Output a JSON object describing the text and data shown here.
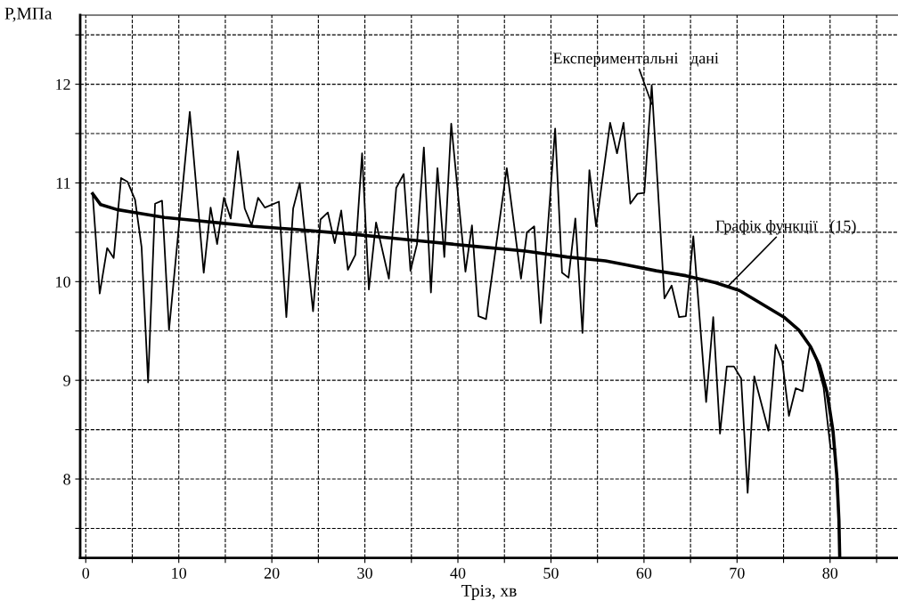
{
  "chart_data": {
    "type": "line",
    "xlabel": "Тріз, хв",
    "ylabel": "P,МПа",
    "xlim": [
      -0.6,
      87.3
    ],
    "ylim": [
      7.2,
      12.7
    ],
    "xticks": [
      0,
      {
        "value": 5,
        "label": null
      },
      10,
      {
        "value": 15,
        "label": null
      },
      20,
      {
        "value": 25,
        "label": null
      },
      30,
      {
        "value": 35,
        "label": null
      },
      40,
      {
        "value": 45,
        "label": null
      },
      50,
      {
        "value": 55,
        "label": null
      },
      60,
      {
        "value": 65,
        "label": null
      },
      70,
      {
        "value": 75,
        "label": null
      },
      80,
      {
        "value": 85,
        "label": null
      }
    ],
    "yticks": [
      {
        "value": 7.5,
        "label": null
      },
      8,
      {
        "value": 8.5,
        "label": null
      },
      9,
      {
        "value": 9.5,
        "label": null
      },
      10,
      {
        "value": 10.5,
        "label": null
      },
      11,
      {
        "value": 11.5,
        "label": null
      },
      12,
      {
        "value": 12.5,
        "label": null
      }
    ],
    "grid": true,
    "line_style": "solid",
    "marker": "none",
    "series": [
      {
        "color": "#000000",
        "x": [
          0.74,
          1.5,
          2.3,
          3.0,
          3.8,
          4.5,
          5.3,
          6.0,
          6.7,
          7.45,
          8.2,
          8.95,
          11.18,
          12.68,
          13.42,
          14.12,
          14.85,
          15.58,
          16.35,
          17.09,
          17.83,
          18.52,
          19.26,
          20.76,
          21.56,
          22.29,
          23.0,
          24.43,
          25.23,
          26.02,
          26.76,
          27.46,
          28.17,
          28.97,
          29.7,
          30.43,
          31.2,
          32.58,
          33.37,
          34.17,
          34.9,
          35.6,
          36.34,
          37.1,
          37.8,
          38.54,
          39.28,
          40.81,
          41.51,
          42.21,
          43.02,
          45.25,
          46.78,
          47.42,
          48.2,
          48.9,
          50.45,
          51.19,
          51.89,
          52.62,
          53.39,
          54.13,
          54.85,
          56.36,
          57.1,
          57.8,
          58.53,
          59.3,
          60.03,
          60.83,
          62.2,
          62.97,
          63.77,
          64.5,
          65.3,
          66.68,
          67.44,
          68.17,
          68.9,
          69.67,
          70.44,
          71.14,
          71.85,
          73.38,
          74.15,
          74.87,
          75.58,
          76.31,
          77.05,
          77.82,
          78.5,
          79.3,
          80.05,
          80.56
        ],
        "values": [
          10.89,
          9.88,
          10.34,
          10.24,
          11.05,
          11.01,
          10.83,
          10.35,
          8.98,
          10.79,
          10.82,
          9.51,
          11.72,
          10.09,
          10.75,
          10.38,
          10.85,
          10.64,
          11.32,
          10.74,
          10.57,
          10.85,
          10.75,
          10.81,
          9.64,
          10.74,
          11.0,
          9.7,
          10.63,
          10.7,
          10.39,
          10.72,
          10.12,
          10.27,
          11.3,
          9.92,
          10.6,
          10.03,
          10.95,
          11.09,
          10.11,
          10.38,
          11.36,
          9.89,
          11.15,
          10.25,
          11.6,
          10.1,
          10.57,
          9.65,
          9.62,
          11.15,
          10.03,
          10.5,
          10.56,
          9.58,
          11.55,
          10.09,
          10.04,
          10.64,
          9.48,
          11.13,
          10.56,
          11.61,
          11.3,
          11.61,
          10.79,
          10.89,
          10.9,
          11.99,
          9.83,
          9.96,
          9.64,
          9.65,
          10.46,
          8.78,
          9.64,
          8.46,
          9.14,
          9.14,
          9.02,
          7.86,
          9.04,
          8.49,
          9.36,
          9.19,
          8.64,
          8.92,
          8.89,
          9.35,
          9.21,
          8.93,
          8.31,
          8.3
        ]
      },
      {
        "color": "#000000",
        "x": [
          0.74,
          1.6,
          3.36,
          5.28,
          8.47,
          11.66,
          14.85,
          18.05,
          22.36,
          28.74,
          35.13,
          41.51,
          47.26,
          51.73,
          55.86,
          58.11,
          61.31,
          64.5,
          67.69,
          70.25,
          71.85,
          75.04,
          76.64,
          77.91,
          78.87,
          79.67,
          80.31,
          80.72,
          80.95,
          81.04
        ],
        "values": [
          10.89,
          10.78,
          10.73,
          10.7,
          10.65,
          10.62,
          10.59,
          10.56,
          10.53,
          10.48,
          10.42,
          10.36,
          10.31,
          10.25,
          10.21,
          10.17,
          10.11,
          10.06,
          9.99,
          9.91,
          9.82,
          9.64,
          9.51,
          9.34,
          9.15,
          8.88,
          8.49,
          8.04,
          7.59,
          7.2
        ]
      }
    ],
    "annotations": [
      {
        "text": "Експериментальні   дані",
        "x": 60.83,
        "y": 11.8
      },
      {
        "text": "Графік функції   (15)",
        "x": 69.0,
        "y": 9.95
      }
    ]
  }
}
